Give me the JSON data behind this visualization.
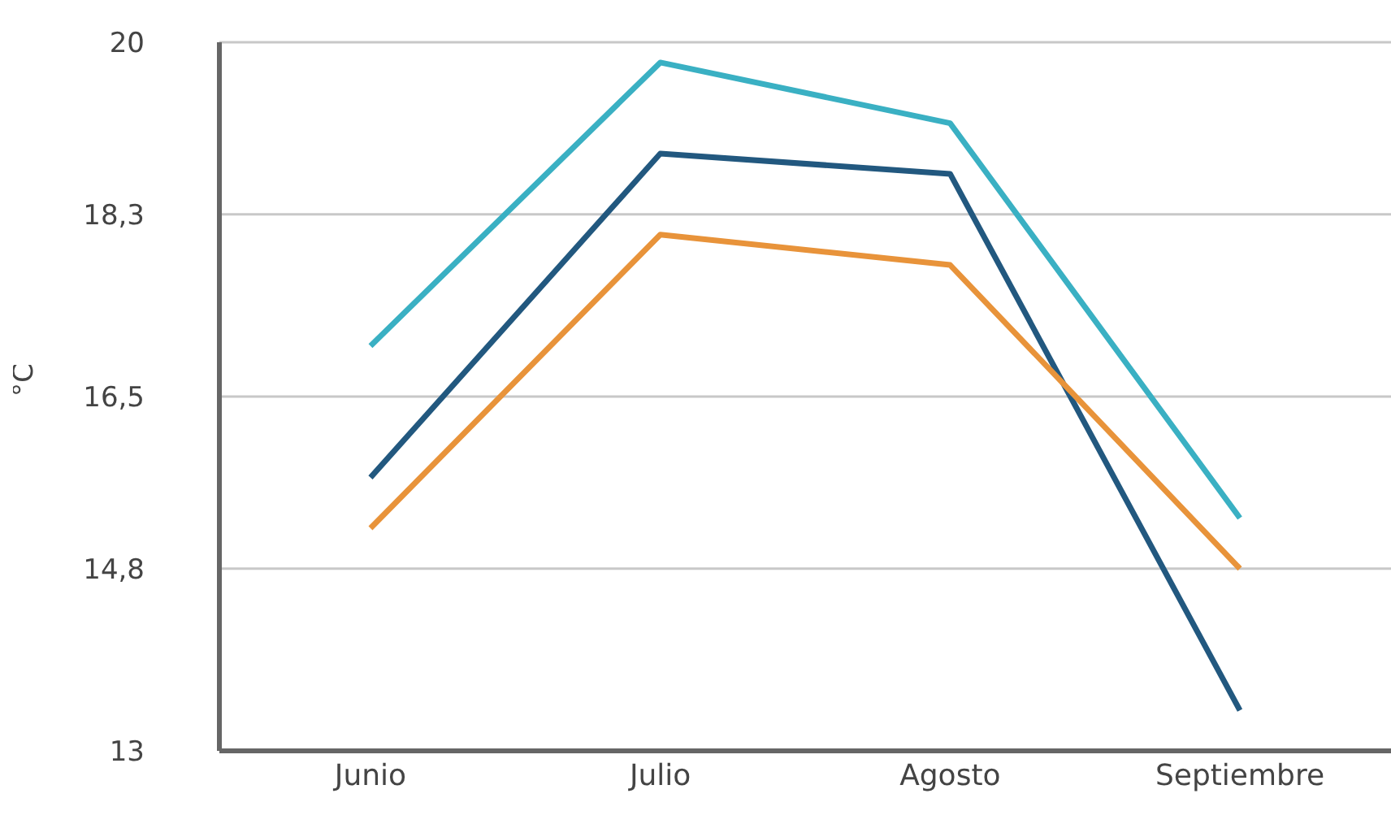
{
  "chart_data": {
    "type": "line",
    "ylabel": "°C",
    "categories": [
      "Junio",
      "Julio",
      "Agosto",
      "Septiembre"
    ],
    "series": [
      {
        "color": "#3ab0c3",
        "values": [
          17.0,
          19.8,
          19.2,
          15.3
        ]
      },
      {
        "color": "#22587f",
        "values": [
          15.7,
          18.9,
          18.7,
          13.4
        ]
      },
      {
        "color": "#e8933a",
        "values": [
          15.2,
          18.1,
          17.8,
          14.8
        ]
      }
    ],
    "ylim": [
      13,
      20
    ],
    "yticks": [
      13,
      {
        "value": 14.8,
        "label": "14,8"
      },
      {
        "value": 16.5,
        "label": "16,5"
      },
      {
        "value": 18.3,
        "label": "18,3"
      },
      20
    ],
    "grid": "y",
    "legend": false,
    "marker": "none",
    "line_style": "solid"
  }
}
